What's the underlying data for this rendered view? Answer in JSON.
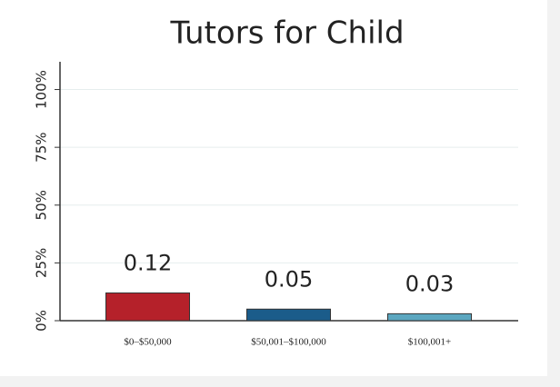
{
  "chart_data": {
    "type": "bar",
    "title": "Tutors for Child",
    "categories": [
      "$0–$50,000",
      "$50,001–$100,000",
      "$100,001+"
    ],
    "values": [
      12,
      5,
      3
    ],
    "value_labels": [
      "0.12",
      "0.05",
      "0.03"
    ],
    "colors": [
      "#b5212a",
      "#1b5c8a",
      "#5ca7c0"
    ],
    "ylim": [
      0,
      112
    ],
    "yticks": [
      {
        "value": 0,
        "label": "0%"
      },
      {
        "value": 25,
        "label": "25%"
      },
      {
        "value": 50,
        "label": "50%"
      },
      {
        "value": 75,
        "label": "75%"
      },
      {
        "value": 100,
        "label": "100%"
      }
    ],
    "grid": true
  }
}
